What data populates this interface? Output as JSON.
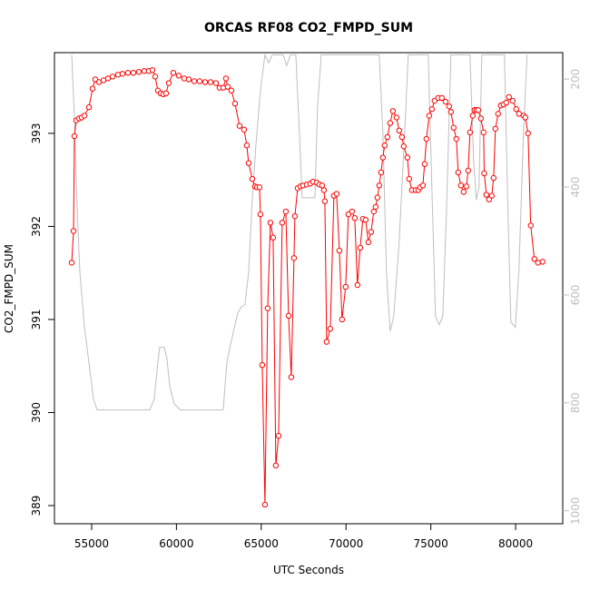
{
  "chart_data": {
    "type": "line",
    "title": "ORCAS RF08 CO2_FMPD_SUM",
    "xlabel": "UTC Seconds",
    "ylabel": "CO2_FMPD_SUM",
    "xlim": [
      52807,
      82781
    ],
    "ylim": [
      388.805,
      393.867
    ],
    "y2lim": [
      1024,
      151
    ],
    "xticks": [
      55000,
      60000,
      65000,
      70000,
      75000,
      80000
    ],
    "yticks": [
      389,
      390,
      391,
      392,
      393
    ],
    "y2ticks": [
      200,
      400,
      600,
      800,
      1000
    ],
    "series": [
      {
        "color": "#ff0000",
        "marker": "circle",
        "x": [
          53823,
          53930,
          53984,
          54091,
          54251,
          54412,
          54572,
          54840,
          55054,
          55214,
          55428,
          55696,
          55963,
          56231,
          56552,
          56819,
          57140,
          57461,
          57782,
          58103,
          58371,
          58585,
          58745,
          58906,
          59066,
          59227,
          59387,
          59548,
          59815,
          60136,
          60457,
          60725,
          61046,
          61367,
          61688,
          62009,
          62330,
          62544,
          62758,
          62918,
          63025,
          63239,
          63453,
          63721,
          63988,
          64149,
          64256,
          64470,
          64630,
          64737,
          64898,
          64951,
          65058,
          65219,
          65379,
          65540,
          65700,
          65861,
          66021,
          66235,
          66449,
          66610,
          66771,
          66931,
          66984,
          67145,
          67305,
          67466,
          67680,
          67894,
          68054,
          68268,
          68429,
          68589,
          68696,
          68750,
          68857,
          69071,
          69285,
          69445,
          69606,
          69766,
          69980,
          70141,
          70355,
          70515,
          70676,
          70836,
          70997,
          71157,
          71318,
          71478,
          71639,
          71746,
          71853,
          71960,
          72067,
          72174,
          72281,
          72441,
          72602,
          72762,
          72976,
          73137,
          73297,
          73404,
          73618,
          73725,
          73886,
          74100,
          74260,
          74367,
          74528,
          74635,
          74742,
          74902,
          75063,
          75223,
          75437,
          75651,
          75865,
          76079,
          76186,
          76347,
          76507,
          76614,
          76775,
          76935,
          77096,
          77203,
          77310,
          77470,
          77577,
          77684,
          77791,
          77952,
          78112,
          78150,
          78273,
          78433,
          78594,
          78701,
          78808,
          78968,
          79129,
          79289,
          79450,
          79610,
          79824,
          80038,
          80199,
          80466,
          80573,
          80734,
          80894,
          81108,
          81322,
          81590
        ],
        "values": [
          391.61,
          391.95,
          392.97,
          393.14,
          393.16,
          393.17,
          393.19,
          393.28,
          393.48,
          393.58,
          393.55,
          393.57,
          393.59,
          393.61,
          393.63,
          393.64,
          393.65,
          393.65,
          393.66,
          393.67,
          393.67,
          393.68,
          393.61,
          393.46,
          393.43,
          393.42,
          393.43,
          393.54,
          393.65,
          393.62,
          393.59,
          393.58,
          393.56,
          393.56,
          393.55,
          393.55,
          393.54,
          393.49,
          393.49,
          393.59,
          393.5,
          393.46,
          393.32,
          393.08,
          393.04,
          392.87,
          392.68,
          392.51,
          392.43,
          392.42,
          392.42,
          392.13,
          390.51,
          389.01,
          391.12,
          392.04,
          391.88,
          389.43,
          389.75,
          392.04,
          392.16,
          391.04,
          390.38,
          391.66,
          392.11,
          392.41,
          392.43,
          392.44,
          392.45,
          392.46,
          392.48,
          392.47,
          392.45,
          392.44,
          392.39,
          392.27,
          390.76,
          390.9,
          392.33,
          392.35,
          391.74,
          391.0,
          391.35,
          392.13,
          392.16,
          392.09,
          391.37,
          391.77,
          392.08,
          392.07,
          391.83,
          391.94,
          392.16,
          392.21,
          392.31,
          392.44,
          392.58,
          392.74,
          392.87,
          392.96,
          393.11,
          393.24,
          393.17,
          393.03,
          392.96,
          392.86,
          392.74,
          392.51,
          392.39,
          392.39,
          392.39,
          392.42,
          392.44,
          392.67,
          392.94,
          393.19,
          393.26,
          393.35,
          393.38,
          393.38,
          393.34,
          393.29,
          393.23,
          393.06,
          392.94,
          392.58,
          392.44,
          392.37,
          392.43,
          392.6,
          393.01,
          393.19,
          393.25,
          393.25,
          393.25,
          393.16,
          393.01,
          392.57,
          392.34,
          392.29,
          392.33,
          392.52,
          393.05,
          393.21,
          393.3,
          393.31,
          393.33,
          393.39,
          393.35,
          393.26,
          393.21,
          393.19,
          393.17,
          393.0,
          392.01,
          391.65,
          391.61,
          391.62
        ]
      },
      {
        "color": "#bebebe",
        "axis": "y2",
        "x": [
          53823,
          53984,
          54144,
          54305,
          54572,
          54840,
          55107,
          55321,
          58424,
          58692,
          58906,
          59013,
          59280,
          59441,
          59601,
          59868,
          60243,
          62758,
          62971,
          63186,
          63614,
          63828,
          64042,
          64256,
          64470,
          64684,
          64951,
          65219,
          65433,
          65647,
          66289,
          66503,
          66717,
          67038,
          67252,
          67412,
          68161,
          68322,
          68536,
          71960,
          72174,
          72388,
          72602,
          72816,
          73137,
          73458,
          73672,
          74849,
          75062,
          75276,
          75490,
          75704,
          75918,
          76186,
          77310,
          77524,
          77684,
          77845,
          78005,
          79342,
          79556,
          79717,
          79985,
          80199,
          80466,
          80680
        ],
        "values": [
          155,
          272,
          440,
          558,
          659,
          726,
          793,
          813,
          813,
          793,
          726,
          697,
          697,
          718,
          768,
          802,
          813,
          813,
          726,
          692,
          634,
          622,
          618,
          558,
          424,
          323,
          222,
          155,
          170,
          155,
          155,
          175,
          155,
          155,
          300,
          420,
          420,
          250,
          155,
          155,
          300,
          560,
          667,
          640,
          500,
          300,
          155,
          155,
          400,
          640,
          655,
          640,
          450,
          155,
          155,
          350,
          424,
          400,
          155,
          155,
          450,
          650,
          660,
          550,
          300,
          155
        ]
      }
    ]
  }
}
